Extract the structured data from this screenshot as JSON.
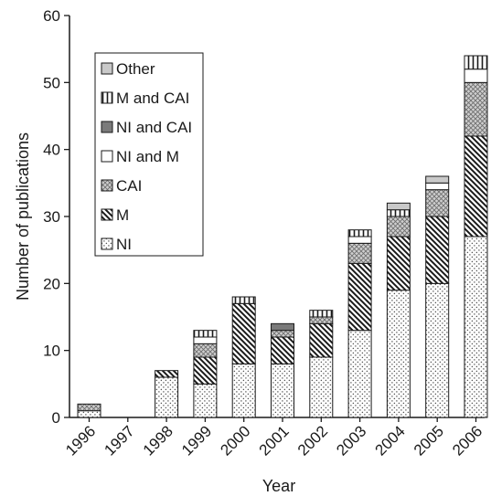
{
  "chart_data": {
    "type": "bar",
    "stacked": true,
    "xlabel": "Year",
    "ylabel": "Number of publications",
    "ylim": [
      0,
      60
    ],
    "yticks": [
      0,
      10,
      20,
      30,
      40,
      50,
      60
    ],
    "grid": false,
    "legend_position": "top-left",
    "categories": [
      "1996",
      "1997",
      "1998",
      "1999",
      "2000",
      "2001",
      "2002",
      "2003",
      "2004",
      "2005",
      "2006"
    ],
    "series": [
      {
        "name": "NI",
        "pattern": "dots",
        "values": [
          1,
          0,
          6,
          5,
          8,
          8,
          9,
          13,
          19,
          20,
          27
        ]
      },
      {
        "name": "M",
        "pattern": "diagonal",
        "values": [
          0,
          0,
          1,
          4,
          9,
          4,
          5,
          10,
          8,
          10,
          15
        ]
      },
      {
        "name": "CAI",
        "pattern": "crosshatch",
        "values": [
          1,
          0,
          0,
          2,
          0,
          1,
          1,
          3,
          3,
          4,
          8
        ]
      },
      {
        "name": "NI and M",
        "pattern": "white",
        "values": [
          0,
          0,
          0,
          1,
          0,
          0,
          0,
          1,
          0,
          1,
          2
        ]
      },
      {
        "name": "NI and CAI",
        "pattern": "dark-gray",
        "values": [
          0,
          0,
          0,
          0,
          0,
          1,
          0,
          0,
          0,
          0,
          0
        ]
      },
      {
        "name": "M and CAI",
        "pattern": "vertical",
        "values": [
          0,
          0,
          0,
          1,
          1,
          0,
          1,
          1,
          1,
          0,
          2
        ]
      },
      {
        "name": "Other",
        "pattern": "light-gray",
        "values": [
          0,
          0,
          0,
          0,
          0,
          0,
          0,
          0,
          1,
          1,
          0
        ]
      }
    ],
    "legend_order": [
      "Other",
      "M and CAI",
      "NI and CAI",
      "NI and M",
      "CAI",
      "M",
      "NI"
    ]
  }
}
